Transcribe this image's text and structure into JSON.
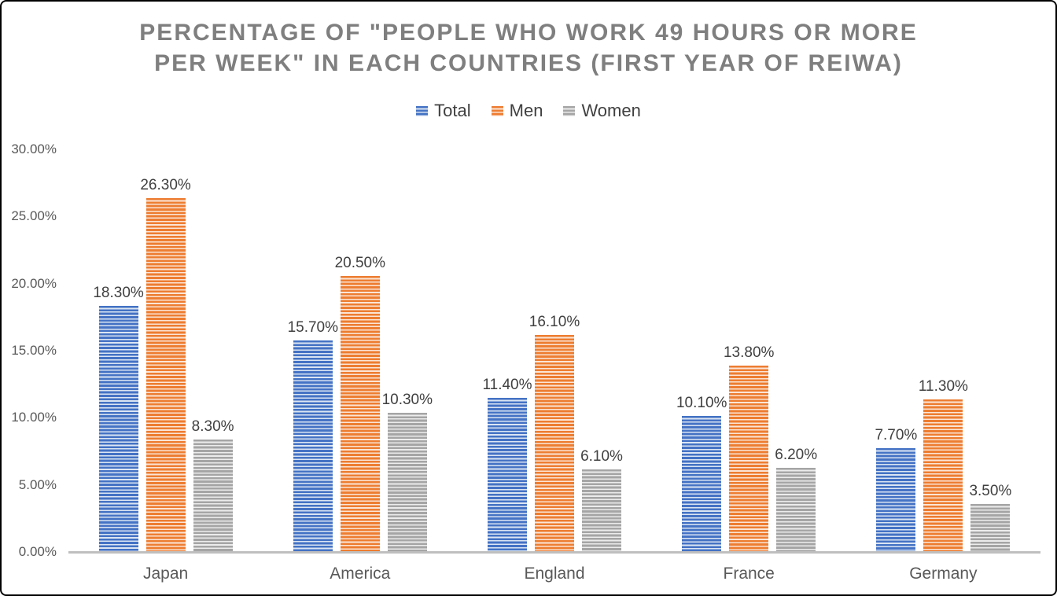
{
  "title": {
    "line1": "PERCENTAGE OF \"PEOPLE WHO WORK 49 HOURS OR MORE",
    "line2": "PER WEEK\" IN EACH COUNTRIES (FIRST YEAR OF REIWA)"
  },
  "legend": {
    "items": [
      {
        "label": "Total",
        "color": "#4472C4"
      },
      {
        "label": "Men",
        "color": "#ED7D31"
      },
      {
        "label": "Women",
        "color": "#A5A5A5"
      }
    ]
  },
  "axis": {
    "y_tick_labels": [
      "0.00%",
      "5.00%",
      "10.00%",
      "15.00%",
      "20.00%",
      "25.00%",
      "30.00%"
    ],
    "y_tick_values": [
      0,
      5,
      10,
      15,
      20,
      25,
      30
    ],
    "x_axis_line_color": "#BFBFBF"
  },
  "colors": {
    "title_text": "#7F7F7F",
    "data_label_text": "#404040",
    "tick_label_text": "#595959",
    "series_total": "#4472C4",
    "series_total_light": "#DBE5F3",
    "series_men": "#ED7D31",
    "series_men_light": "#FBE5D6",
    "series_women": "#A5A5A5",
    "series_women_light": "#ECECEC"
  },
  "chart_data": {
    "type": "bar",
    "title": "PERCENTAGE OF \"PEOPLE WHO WORK 49 HOURS OR MORE PER WEEK\" IN EACH COUNTRIES (FIRST YEAR OF REIWA)",
    "categories": [
      "Japan",
      "America",
      "England",
      "France",
      "Germany"
    ],
    "series": [
      {
        "name": "Total",
        "color": "#4472C4",
        "light": "#DBE5F3",
        "values": [
          18.3,
          15.7,
          11.4,
          10.1,
          7.7
        ],
        "labels": [
          "18.30%",
          "15.70%",
          "11.40%",
          "10.10%",
          "7.70%"
        ]
      },
      {
        "name": "Men",
        "color": "#ED7D31",
        "light": "#FBE5D6",
        "values": [
          26.3,
          20.5,
          16.1,
          13.8,
          11.3
        ],
        "labels": [
          "26.30%",
          "20.50%",
          "16.10%",
          "13.80%",
          "11.30%"
        ]
      },
      {
        "name": "Women",
        "color": "#A5A5A5",
        "light": "#ECECEC",
        "values": [
          8.3,
          10.3,
          6.1,
          6.2,
          3.5
        ],
        "labels": [
          "8.30%",
          "10.30%",
          "6.10%",
          "6.20%",
          "3.50%"
        ]
      }
    ],
    "xlabel": "",
    "ylabel": "",
    "ylim": [
      0,
      30
    ],
    "y_tick_step": 5,
    "grid": false,
    "legend_position": "top",
    "bar_pattern": "horizontal-stripes",
    "data_labels_shown": true
  }
}
